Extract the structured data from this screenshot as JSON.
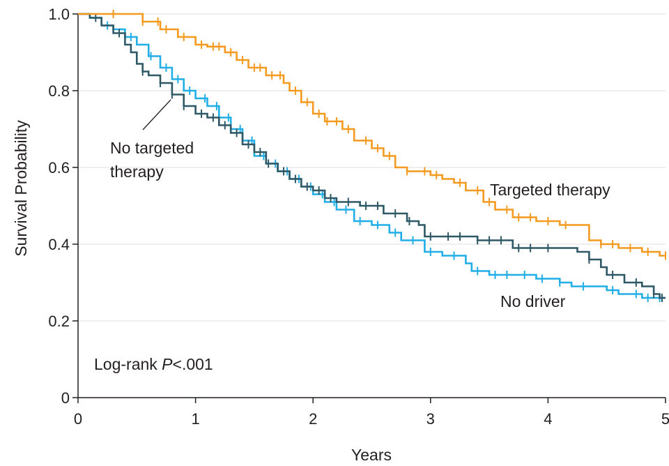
{
  "chart_data": {
    "type": "line",
    "xlabel": "Years",
    "ylabel": "Survival Probability",
    "xlim": [
      0,
      5
    ],
    "ylim": [
      0,
      1.0
    ],
    "x_ticks": [
      "0",
      "1",
      "2",
      "3",
      "4",
      "5"
    ],
    "y_ticks": [
      "0",
      "0.2",
      "0.4",
      "0.6",
      "0.8",
      "1.0"
    ],
    "grid": "horizontal",
    "annotation": {
      "prefix": "Log-rank ",
      "italic": "P",
      "suffix": "<.001"
    },
    "series": [
      {
        "name": "Targeted therapy",
        "label_line2": "",
        "color": "#f39a1f",
        "points": [
          [
            0,
            1.0
          ],
          [
            0.45,
            1.0
          ],
          [
            0.55,
            0.98
          ],
          [
            0.7,
            0.96
          ],
          [
            0.85,
            0.94
          ],
          [
            1.0,
            0.92
          ],
          [
            1.1,
            0.915
          ],
          [
            1.25,
            0.9
          ],
          [
            1.35,
            0.88
          ],
          [
            1.45,
            0.86
          ],
          [
            1.6,
            0.84
          ],
          [
            1.75,
            0.82
          ],
          [
            1.8,
            0.8
          ],
          [
            1.9,
            0.77
          ],
          [
            2.0,
            0.74
          ],
          [
            2.1,
            0.72
          ],
          [
            2.25,
            0.7
          ],
          [
            2.35,
            0.67
          ],
          [
            2.5,
            0.65
          ],
          [
            2.6,
            0.63
          ],
          [
            2.7,
            0.6
          ],
          [
            2.8,
            0.59
          ],
          [
            3.0,
            0.58
          ],
          [
            3.1,
            0.57
          ],
          [
            3.2,
            0.56
          ],
          [
            3.3,
            0.54
          ],
          [
            3.45,
            0.51
          ],
          [
            3.55,
            0.49
          ],
          [
            3.7,
            0.47
          ],
          [
            3.9,
            0.46
          ],
          [
            4.1,
            0.45
          ],
          [
            4.2,
            0.45
          ],
          [
            4.3,
            0.45
          ],
          [
            4.35,
            0.41
          ],
          [
            4.45,
            0.4
          ],
          [
            4.6,
            0.39
          ],
          [
            4.8,
            0.38
          ],
          [
            4.95,
            0.37
          ],
          [
            5.0,
            0.37
          ]
        ],
        "censor_x": [
          0.3,
          0.55,
          0.68,
          0.75,
          0.9,
          1.05,
          1.15,
          1.2,
          1.3,
          1.4,
          1.5,
          1.55,
          1.65,
          1.72,
          1.85,
          1.95,
          2.05,
          2.12,
          2.2,
          2.3,
          2.45,
          2.55,
          2.65,
          2.8,
          2.95,
          3.05,
          3.25,
          3.4,
          3.5,
          3.65,
          3.75,
          3.85,
          4.0,
          4.15,
          4.45,
          4.55,
          4.7,
          4.85,
          5.0
        ]
      },
      {
        "name": "No targeted",
        "label_line2": "therapy",
        "color": "#2e5865",
        "points": [
          [
            0,
            1.0
          ],
          [
            0.1,
            0.99
          ],
          [
            0.2,
            0.97
          ],
          [
            0.3,
            0.95
          ],
          [
            0.4,
            0.92
          ],
          [
            0.45,
            0.9
          ],
          [
            0.5,
            0.87
          ],
          [
            0.55,
            0.85
          ],
          [
            0.6,
            0.84
          ],
          [
            0.7,
            0.82
          ],
          [
            0.8,
            0.79
          ],
          [
            0.9,
            0.76
          ],
          [
            1.0,
            0.74
          ],
          [
            1.1,
            0.73
          ],
          [
            1.2,
            0.71
          ],
          [
            1.3,
            0.69
          ],
          [
            1.4,
            0.66
          ],
          [
            1.5,
            0.64
          ],
          [
            1.6,
            0.61
          ],
          [
            1.7,
            0.59
          ],
          [
            1.8,
            0.57
          ],
          [
            1.9,
            0.55
          ],
          [
            2.0,
            0.54
          ],
          [
            2.1,
            0.52
          ],
          [
            2.2,
            0.51
          ],
          [
            2.4,
            0.5
          ],
          [
            2.6,
            0.48
          ],
          [
            2.8,
            0.46
          ],
          [
            2.9,
            0.45
          ],
          [
            2.95,
            0.42
          ],
          [
            3.1,
            0.42
          ],
          [
            3.4,
            0.41
          ],
          [
            3.6,
            0.41
          ],
          [
            3.7,
            0.39
          ],
          [
            3.9,
            0.39
          ],
          [
            4.1,
            0.39
          ],
          [
            4.25,
            0.38
          ],
          [
            4.35,
            0.36
          ],
          [
            4.45,
            0.34
          ],
          [
            4.5,
            0.32
          ],
          [
            4.65,
            0.3
          ],
          [
            4.8,
            0.29
          ],
          [
            4.9,
            0.27
          ],
          [
            4.95,
            0.26
          ],
          [
            5.0,
            0.26
          ]
        ],
        "censor_x": [
          0.15,
          0.35,
          0.55,
          0.7,
          0.8,
          0.9,
          1.05,
          1.15,
          1.25,
          1.35,
          1.45,
          1.55,
          1.62,
          1.75,
          1.85,
          1.95,
          2.05,
          2.15,
          2.3,
          2.45,
          2.55,
          2.7,
          2.82,
          3.0,
          3.15,
          3.25,
          3.4,
          3.5,
          3.6,
          3.75,
          3.85,
          4.0,
          4.35,
          4.55,
          4.75,
          4.9,
          4.97
        ]
      },
      {
        "name": "No driver",
        "label_line2": "",
        "color": "#21aee6",
        "points": [
          [
            0,
            1.0
          ],
          [
            0.1,
            0.99
          ],
          [
            0.2,
            0.97
          ],
          [
            0.3,
            0.96
          ],
          [
            0.4,
            0.94
          ],
          [
            0.5,
            0.92
          ],
          [
            0.6,
            0.89
          ],
          [
            0.7,
            0.86
          ],
          [
            0.8,
            0.83
          ],
          [
            0.9,
            0.8
          ],
          [
            1.0,
            0.78
          ],
          [
            1.1,
            0.76
          ],
          [
            1.2,
            0.73
          ],
          [
            1.3,
            0.7
          ],
          [
            1.4,
            0.67
          ],
          [
            1.5,
            0.63
          ],
          [
            1.6,
            0.61
          ],
          [
            1.7,
            0.59
          ],
          [
            1.8,
            0.57
          ],
          [
            1.9,
            0.55
          ],
          [
            2.0,
            0.53
          ],
          [
            2.1,
            0.51
          ],
          [
            2.2,
            0.49
          ],
          [
            2.35,
            0.46
          ],
          [
            2.5,
            0.45
          ],
          [
            2.65,
            0.43
          ],
          [
            2.75,
            0.41
          ],
          [
            2.9,
            0.41
          ],
          [
            2.95,
            0.38
          ],
          [
            3.1,
            0.37
          ],
          [
            3.25,
            0.37
          ],
          [
            3.3,
            0.35
          ],
          [
            3.35,
            0.33
          ],
          [
            3.5,
            0.32
          ],
          [
            3.7,
            0.32
          ],
          [
            3.9,
            0.31
          ],
          [
            4.1,
            0.3
          ],
          [
            4.2,
            0.29
          ],
          [
            4.5,
            0.28
          ],
          [
            4.6,
            0.27
          ],
          [
            4.8,
            0.26
          ],
          [
            5.0,
            0.26
          ]
        ],
        "censor_x": [
          0.25,
          0.45,
          0.62,
          0.75,
          0.85,
          0.95,
          1.08,
          1.18,
          1.28,
          1.38,
          1.48,
          1.58,
          1.68,
          1.78,
          1.88,
          1.98,
          2.08,
          2.18,
          2.28,
          2.4,
          2.55,
          2.7,
          2.85,
          3.0,
          3.2,
          3.4,
          3.55,
          3.65,
          3.8,
          3.95,
          4.1,
          4.3,
          4.55,
          4.75,
          4.85,
          4.95
        ]
      }
    ]
  }
}
